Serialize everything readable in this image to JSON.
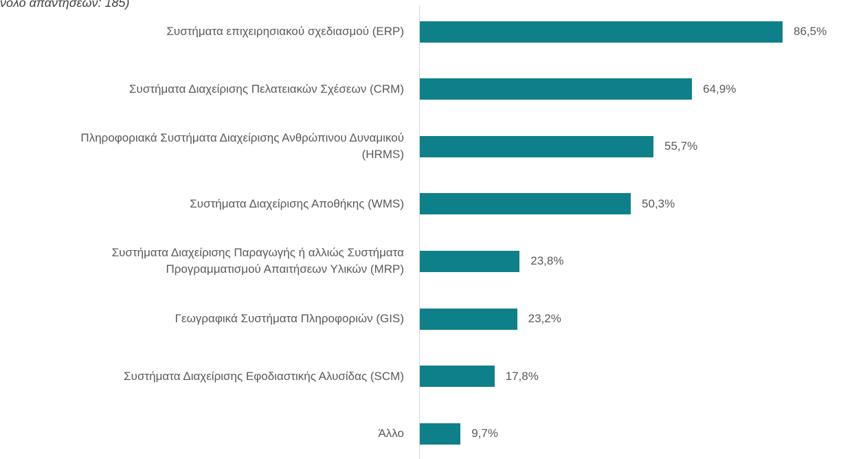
{
  "chart_data": {
    "type": "bar",
    "orientation": "horizontal",
    "subtitle": "νολο απαντήσεων: 185)",
    "categories": [
      "Συστήματα επιχειρησιακού σχεδιασμού (ERP)",
      "Συστήματα Διαχείρισης Πελατειακών Σχέσεων (CRM)",
      "Πληροφοριακά Συστήματα Διαχείρισης Ανθρώπινου Δυναμικού\n(HRMS)",
      "Συστήματα Διαχείρισης Αποθήκης (WMS)",
      "Συστήματα Διαχείρισης Παραγωγής ή αλλιώς Συστήματα\nΠρογραμματισμού Απαιτήσεων Υλικών (MRP)",
      "Γεωγραφικά Συστήματα Πληροφοριών (GIS)",
      "Συστήματα Διαχείρισης Εφοδιαστικής Αλυσίδας (SCM)",
      "Άλλο"
    ],
    "values": [
      86.5,
      64.9,
      55.7,
      50.3,
      23.8,
      23.2,
      17.8,
      9.7
    ],
    "value_labels": [
      "86,5%",
      "64,9%",
      "55,7%",
      "50,3%",
      "23,8%",
      "23,2%",
      "17,8%",
      "9,7%"
    ],
    "color": "#0e8089"
  }
}
